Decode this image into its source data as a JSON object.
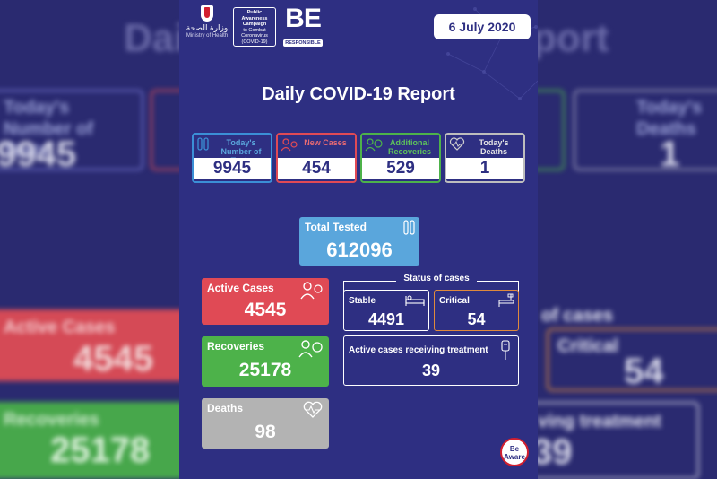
{
  "header": {
    "ministry_arabic": "وزارة الصحة",
    "ministry_name": "Ministry of Health",
    "campaign_title": "Public Awareness Campaign",
    "campaign_subtitle": "to Combat Coronavirus (COVID-19)",
    "be_logo": "BE",
    "be_logo_sub": "RESPONSIBLE",
    "date": "6 July 2020"
  },
  "title": "Daily COVID-19 Report",
  "daily_stats": [
    {
      "label": "Today's Number of Tests",
      "value": "9945",
      "color": "#3b8fd6",
      "icon": "test-tubes-icon"
    },
    {
      "label": "New Cases",
      "value": "454",
      "color": "#e04a55",
      "icon": "person-virus-icon"
    },
    {
      "label": "Additional Recoveries",
      "value": "529",
      "color": "#4db24a",
      "icon": "person-recovery-icon"
    },
    {
      "label": "Today's Deaths",
      "value": "1",
      "color": "#bdbdbd",
      "icon": "heart-pulse-icon"
    }
  ],
  "total_tested": {
    "label": "Total Tested",
    "value": "612096",
    "color": "#5aa6dc"
  },
  "active_cases": {
    "label": "Active Cases",
    "value": "4545",
    "color": "#e04a55"
  },
  "recoveries": {
    "label": "Recoveries",
    "value": "25178",
    "color": "#4db24a"
  },
  "deaths": {
    "label": "Deaths",
    "value": "98",
    "color": "#b3b3b3"
  },
  "status_of_cases": {
    "title": "Status of cases",
    "stable": {
      "label": "Stable",
      "value": "4491"
    },
    "critical": {
      "label": "Critical",
      "value": "54",
      "color": "#e08a3c"
    },
    "treatment": {
      "label": "Active cases receiving treatment",
      "value": "39"
    }
  },
  "badge": "Be Aware",
  "background_blur": {
    "left_tests_label": "Today's Number of Tests",
    "left_tests_value": "9945",
    "left_active_label": "Active Cases",
    "left_active_value": "4545",
    "left_recoveries_label": "Recoveries",
    "left_recoveries_value": "25178",
    "right_deaths_label": "Today's Deaths",
    "right_deaths_value": "1",
    "right_status_label": "of cases",
    "right_critical_label": "Critical",
    "right_critical_value": "54",
    "right_treatment_label": "ving treatment",
    "right_treatment_value": "39",
    "title_left": "Dai",
    "title_right": "port"
  }
}
